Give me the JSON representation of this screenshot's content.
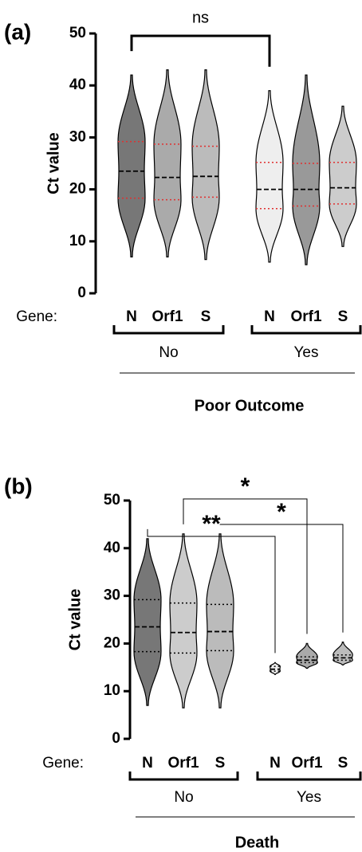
{
  "chart_data": [
    {
      "type": "violin",
      "panel_label": "(a)",
      "y_label": "Ct value",
      "x_label": "Poor Outcome",
      "gene_label": "Gene:",
      "ylim": [
        0,
        50
      ],
      "yticks": [
        0,
        10,
        20,
        30,
        40,
        50
      ],
      "quartile_color": "#e03030",
      "groups": [
        {
          "name": "No",
          "violins": [
            {
              "gene": "N",
              "color": "#777777",
              "min": 7,
              "q1": 18.3,
              "median": 23.5,
              "q3": 29.2,
              "max": 42
            },
            {
              "gene": "Orf1",
              "color": "#aaaaaa",
              "min": 7,
              "q1": 18,
              "median": 22.3,
              "q3": 28.7,
              "max": 43
            },
            {
              "gene": "S",
              "color": "#bbbbbb",
              "min": 6.5,
              "q1": 18.5,
              "median": 22.5,
              "q3": 28.3,
              "max": 43
            }
          ]
        },
        {
          "name": "Yes",
          "violins": [
            {
              "gene": "N",
              "color": "#eeeeee",
              "min": 6,
              "q1": 16.3,
              "median": 20,
              "q3": 25.2,
              "max": 39
            },
            {
              "gene": "Orf1",
              "color": "#999999",
              "min": 5.5,
              "q1": 16.8,
              "median": 20,
              "q3": 25,
              "max": 42
            },
            {
              "gene": "S",
              "color": "#cccccc",
              "min": 9,
              "q1": 17.2,
              "median": 20.3,
              "q3": 25.2,
              "max": 36
            }
          ]
        }
      ],
      "comparisons": [
        {
          "label": "ns",
          "from": 0,
          "to": 3
        }
      ]
    },
    {
      "type": "violin",
      "panel_label": "(b)",
      "y_label": "Ct value",
      "x_label": "Death",
      "gene_label": "Gene:",
      "ylim": [
        0,
        50
      ],
      "yticks": [
        0,
        10,
        20,
        30,
        40,
        50
      ],
      "quartile_color": "#000000",
      "groups": [
        {
          "name": "No",
          "violins": [
            {
              "gene": "N",
              "color": "#777777",
              "min": 7,
              "q1": 18.3,
              "median": 23.5,
              "q3": 29.2,
              "max": 42
            },
            {
              "gene": "Orf1",
              "color": "#cccccc",
              "min": 6.5,
              "q1": 18,
              "median": 22.3,
              "q3": 28.5,
              "max": 43
            },
            {
              "gene": "S",
              "color": "#bbbbbb",
              "min": 6.5,
              "q1": 18.5,
              "median": 22.5,
              "q3": 28.2,
              "max": 43
            }
          ]
        },
        {
          "name": "Yes",
          "violins": [
            {
              "gene": "N",
              "color": "#eeeeee",
              "min": 13.5,
              "q1": 14.2,
              "median": 14.6,
              "q3": 15.2,
              "max": 16
            },
            {
              "gene": "Orf1",
              "color": "#aaaaaa",
              "min": 14.8,
              "q1": 16,
              "median": 16.5,
              "q3": 17.2,
              "max": 20
            },
            {
              "gene": "S",
              "color": "#bbbbbb",
              "min": 15.5,
              "q1": 16.5,
              "median": 17,
              "q3": 17.6,
              "max": 20.3
            }
          ]
        }
      ],
      "comparisons": [
        {
          "label": "**",
          "from": 0,
          "to": 3
        },
        {
          "label": "*",
          "from": 1,
          "to": 4
        },
        {
          "label": "*",
          "from": 2,
          "to": 5
        }
      ]
    }
  ]
}
